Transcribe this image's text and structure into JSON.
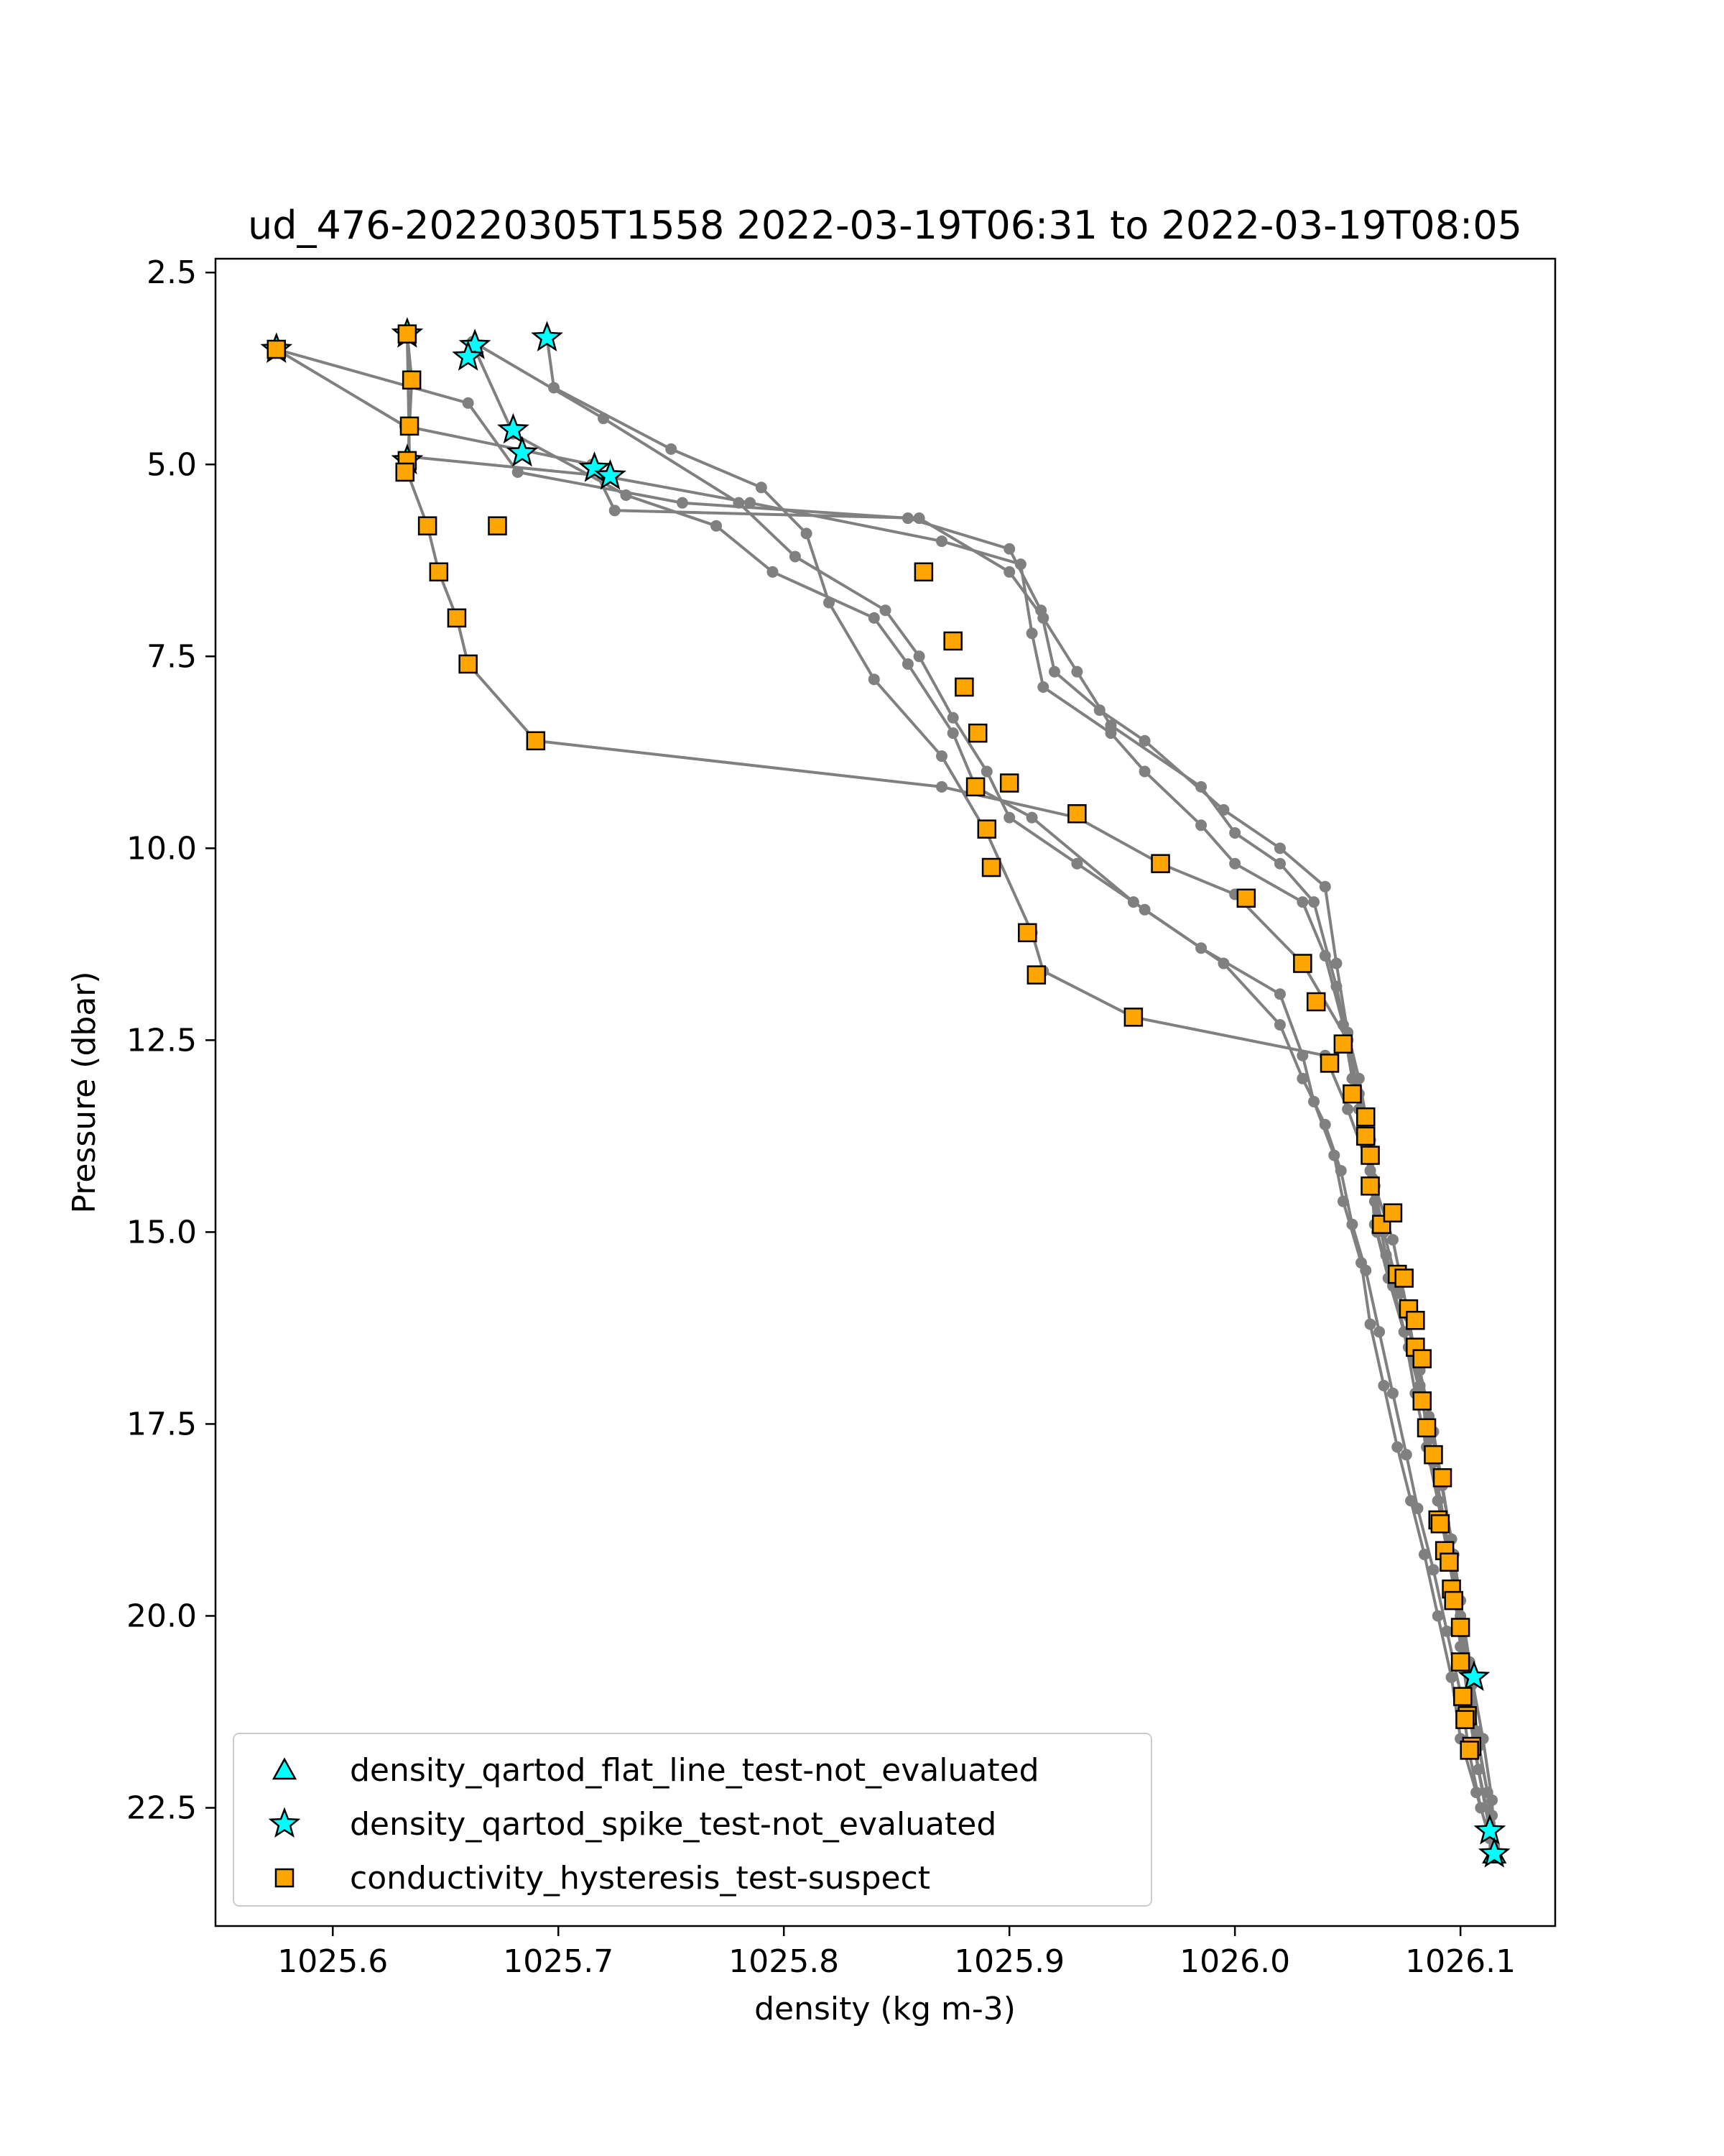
{
  "chart_data": {
    "type": "line",
    "title": "ud_476-20220305T1558 2022-03-19T06:31 to 2022-03-19T08:05",
    "xlabel": "density (kg m-3)",
    "ylabel": "Pressure (dbar)",
    "xlim": [
      1025.548,
      1026.142
    ],
    "ylim": [
      24.04,
      2.32
    ],
    "y_inverted": true,
    "x_ticks": [
      1025.6,
      1025.7,
      1025.8,
      1025.9,
      1026.0,
      1026.1
    ],
    "x_tick_labels": [
      "1025.6",
      "1025.7",
      "1025.8",
      "1025.9",
      "1026.0",
      "1026.1"
    ],
    "y_ticks": [
      2.5,
      5.0,
      7.5,
      10.0,
      12.5,
      15.0,
      17.5,
      20.0,
      22.5
    ],
    "y_tick_labels": [
      "2.5",
      "5.0",
      "7.5",
      "10.0",
      "12.5",
      "15.0",
      "17.5",
      "20.0",
      "22.5"
    ],
    "grid": false,
    "legend_position": "lower-left",
    "colors": {
      "profile_line": "#808080",
      "flat_line_marker": "#00ffff",
      "spike_marker": "#00ffff",
      "hysteresis_marker": "#ffa500",
      "marker_edge": "#000000"
    },
    "profiles": [
      [
        [
          1025.575,
          3.5
        ],
        [
          1025.66,
          4.2
        ],
        [
          1025.682,
          5.1
        ],
        [
          1025.755,
          5.5
        ],
        [
          1025.855,
          5.7
        ],
        [
          1025.9,
          6.1
        ],
        [
          1025.914,
          6.9
        ],
        [
          1025.92,
          7.7
        ],
        [
          1025.94,
          8.2
        ],
        [
          1025.96,
          8.6
        ],
        [
          1025.995,
          9.5
        ],
        [
          1026.02,
          10.0
        ],
        [
          1026.04,
          10.5
        ],
        [
          1026.045,
          11.5
        ],
        [
          1026.05,
          12.4
        ],
        [
          1026.055,
          13.0
        ],
        [
          1026.06,
          13.8
        ],
        [
          1026.062,
          14.6
        ],
        [
          1026.067,
          15.3
        ],
        [
          1026.075,
          16.0
        ],
        [
          1026.082,
          16.8
        ],
        [
          1026.088,
          17.6
        ],
        [
          1026.092,
          18.3
        ],
        [
          1026.097,
          19.2
        ],
        [
          1026.1,
          20.0
        ],
        [
          1026.105,
          20.8
        ],
        [
          1026.11,
          21.6
        ],
        [
          1026.114,
          22.4
        ],
        [
          1026.115,
          23.1
        ]
      ],
      [
        [
          1025.633,
          3.3
        ],
        [
          1025.635,
          3.9
        ],
        [
          1025.634,
          4.5
        ],
        [
          1025.633,
          5.1
        ],
        [
          1025.642,
          5.8
        ],
        [
          1025.647,
          6.4
        ],
        [
          1025.655,
          7.0
        ],
        [
          1025.66,
          7.6
        ],
        [
          1025.69,
          8.6
        ],
        [
          1025.87,
          9.2
        ],
        [
          1025.93,
          9.6
        ],
        [
          1025.967,
          10.2
        ],
        [
          1026.0,
          10.6
        ],
        [
          1026.03,
          11.5
        ],
        [
          1026.05,
          12.5
        ],
        [
          1026.055,
          13.2
        ],
        [
          1026.06,
          13.8
        ],
        [
          1026.062,
          14.4
        ],
        [
          1026.07,
          15.1
        ],
        [
          1026.077,
          16.1
        ],
        [
          1026.082,
          17.0
        ],
        [
          1026.086,
          17.7
        ],
        [
          1026.09,
          18.5
        ],
        [
          1026.096,
          19.3
        ],
        [
          1026.1,
          20.1
        ],
        [
          1026.103,
          21.0
        ],
        [
          1026.106,
          21.7
        ],
        [
          1026.113,
          22.8
        ],
        [
          1026.115,
          23.1
        ]
      ],
      [
        [
          1025.575,
          3.5
        ],
        [
          1025.632,
          4.5
        ],
        [
          1025.715,
          5.0
        ],
        [
          1025.725,
          5.6
        ],
        [
          1025.86,
          5.7
        ],
        [
          1025.9,
          6.4
        ],
        [
          1025.915,
          7.0
        ],
        [
          1025.93,
          7.7
        ],
        [
          1025.945,
          8.4
        ],
        [
          1025.985,
          9.2
        ],
        [
          1026.0,
          9.8
        ],
        [
          1026.02,
          10.2
        ],
        [
          1026.035,
          10.7
        ],
        [
          1026.045,
          11.8
        ],
        [
          1026.05,
          12.5
        ],
        [
          1026.055,
          13.4
        ],
        [
          1026.06,
          14.2
        ],
        [
          1026.063,
          15.0
        ],
        [
          1026.07,
          15.7
        ],
        [
          1026.077,
          16.5
        ],
        [
          1026.083,
          17.2
        ],
        [
          1026.088,
          18.0
        ],
        [
          1026.093,
          18.8
        ],
        [
          1026.097,
          19.6
        ],
        [
          1026.1,
          20.4
        ],
        [
          1026.104,
          21.2
        ],
        [
          1026.108,
          22.0
        ],
        [
          1026.113,
          22.7
        ],
        [
          1026.115,
          23.0
        ]
      ],
      [
        [
          1025.633,
          3.3
        ],
        [
          1025.634,
          4.9
        ],
        [
          1025.72,
          5.15
        ],
        [
          1025.785,
          5.5
        ],
        [
          1025.87,
          6.0
        ],
        [
          1025.905,
          6.3
        ],
        [
          1025.91,
          7.2
        ],
        [
          1025.915,
          7.9
        ],
        [
          1025.945,
          8.5
        ],
        [
          1025.96,
          9.0
        ],
        [
          1025.985,
          9.7
        ],
        [
          1026.0,
          10.2
        ],
        [
          1026.03,
          10.7
        ],
        [
          1026.04,
          11.4
        ],
        [
          1026.048,
          12.3
        ],
        [
          1026.052,
          13.0
        ],
        [
          1026.057,
          13.6
        ],
        [
          1026.061,
          14.3
        ],
        [
          1026.066,
          15.0
        ],
        [
          1026.073,
          15.8
        ],
        [
          1026.08,
          16.6
        ],
        [
          1026.086,
          17.4
        ],
        [
          1026.091,
          18.2
        ],
        [
          1026.096,
          19.0
        ],
        [
          1026.1,
          19.8
        ],
        [
          1026.104,
          20.6
        ],
        [
          1026.107,
          21.5
        ],
        [
          1026.112,
          22.3
        ],
        [
          1026.114,
          22.9
        ]
      ],
      [
        [
          1025.663,
          3.5
        ],
        [
          1025.68,
          4.6
        ],
        [
          1025.73,
          5.4
        ],
        [
          1025.77,
          5.8
        ],
        [
          1025.795,
          6.4
        ],
        [
          1025.84,
          7.0
        ],
        [
          1025.855,
          7.6
        ],
        [
          1025.875,
          8.5
        ],
        [
          1025.885,
          9.2
        ],
        [
          1025.91,
          9.6
        ],
        [
          1025.955,
          10.7
        ],
        [
          1025.985,
          11.3
        ],
        [
          1026.02,
          11.9
        ],
        [
          1026.03,
          12.7
        ],
        [
          1026.035,
          13.3
        ],
        [
          1026.044,
          14.0
        ],
        [
          1026.048,
          14.6
        ],
        [
          1026.056,
          15.4
        ],
        [
          1026.06,
          16.2
        ],
        [
          1026.066,
          17.0
        ],
        [
          1026.072,
          17.8
        ],
        [
          1026.078,
          18.5
        ],
        [
          1026.084,
          19.2
        ],
        [
          1026.09,
          20.0
        ],
        [
          1026.096,
          20.8
        ],
        [
          1026.1,
          21.6
        ],
        [
          1026.107,
          22.3
        ],
        [
          1026.113,
          22.9
        ]
      ],
      [
        [
          1025.662,
          3.4
        ],
        [
          1025.72,
          4.4
        ],
        [
          1025.78,
          5.5
        ],
        [
          1025.805,
          6.2
        ],
        [
          1025.845,
          6.9
        ],
        [
          1025.86,
          7.5
        ],
        [
          1025.875,
          8.3
        ],
        [
          1025.89,
          9.0
        ],
        [
          1025.9,
          9.6
        ],
        [
          1025.93,
          10.2
        ],
        [
          1025.96,
          10.8
        ],
        [
          1025.995,
          11.5
        ],
        [
          1026.02,
          12.3
        ],
        [
          1026.03,
          13.0
        ],
        [
          1026.04,
          13.6
        ],
        [
          1026.047,
          14.2
        ],
        [
          1026.052,
          14.9
        ],
        [
          1026.058,
          15.5
        ],
        [
          1026.064,
          16.3
        ],
        [
          1026.07,
          17.1
        ],
        [
          1026.076,
          17.9
        ],
        [
          1026.081,
          18.6
        ],
        [
          1026.088,
          19.4
        ],
        [
          1026.094,
          20.2
        ],
        [
          1026.1,
          21.0
        ],
        [
          1026.104,
          21.8
        ],
        [
          1026.109,
          22.5
        ]
      ],
      [
        [
          1025.695,
          3.35
        ],
        [
          1025.698,
          4.0
        ],
        [
          1025.75,
          4.8
        ],
        [
          1025.79,
          5.3
        ],
        [
          1025.81,
          5.9
        ],
        [
          1025.82,
          6.8
        ],
        [
          1025.84,
          7.8
        ],
        [
          1025.87,
          8.8
        ],
        [
          1025.89,
          9.8
        ],
        [
          1025.91,
          11.1
        ],
        [
          1025.915,
          11.6
        ],
        [
          1025.955,
          12.2
        ],
        [
          1026.04,
          12.7
        ],
        [
          1026.05,
          13.4
        ],
        [
          1026.06,
          14.2
        ],
        [
          1026.062,
          14.9
        ],
        [
          1026.068,
          15.6
        ],
        [
          1026.075,
          16.3
        ],
        [
          1026.08,
          17.1
        ],
        [
          1026.085,
          17.8
        ],
        [
          1026.09,
          18.5
        ],
        [
          1026.095,
          19.3
        ],
        [
          1026.1,
          20.1
        ],
        [
          1026.105,
          20.9
        ],
        [
          1026.108,
          21.7
        ],
        [
          1026.114,
          22.6
        ]
      ]
    ],
    "series": [
      {
        "name": "density_qartod_flat_line_test-not_evaluated",
        "marker": "triangle",
        "points": [
          [
            1026.115,
            23.1
          ]
        ]
      },
      {
        "name": "density_qartod_spike_test-not_evaluated",
        "marker": "star",
        "points": [
          [
            1025.575,
            3.5
          ],
          [
            1025.633,
            3.3
          ],
          [
            1025.663,
            3.45
          ],
          [
            1025.66,
            3.6
          ],
          [
            1025.695,
            3.35
          ],
          [
            1025.68,
            4.55
          ],
          [
            1025.684,
            4.85
          ],
          [
            1025.716,
            5.05
          ],
          [
            1025.723,
            5.15
          ],
          [
            1025.633,
            4.95
          ],
          [
            1026.106,
            20.8
          ],
          [
            1026.113,
            22.8
          ],
          [
            1026.115,
            23.1
          ]
        ]
      },
      {
        "name": "conductivity_hysteresis_test-suspect",
        "marker": "square",
        "points": [
          [
            1025.575,
            3.5
          ],
          [
            1025.633,
            3.3
          ],
          [
            1025.635,
            3.9
          ],
          [
            1025.634,
            4.5
          ],
          [
            1025.633,
            4.95
          ],
          [
            1025.632,
            5.1
          ],
          [
            1025.642,
            5.8
          ],
          [
            1025.647,
            6.4
          ],
          [
            1025.655,
            7.0
          ],
          [
            1025.66,
            7.6
          ],
          [
            1025.69,
            8.6
          ],
          [
            1025.673,
            5.8
          ],
          [
            1025.862,
            6.4
          ],
          [
            1025.875,
            7.3
          ],
          [
            1025.88,
            7.9
          ],
          [
            1025.886,
            8.5
          ],
          [
            1025.885,
            9.2
          ],
          [
            1025.9,
            9.15
          ],
          [
            1025.89,
            9.75
          ],
          [
            1025.892,
            10.25
          ],
          [
            1025.908,
            11.1
          ],
          [
            1025.912,
            11.65
          ],
          [
            1025.955,
            12.2
          ],
          [
            1025.93,
            9.55
          ],
          [
            1025.967,
            10.2
          ],
          [
            1026.005,
            10.65
          ],
          [
            1026.03,
            11.5
          ],
          [
            1026.036,
            12.0
          ],
          [
            1026.048,
            12.55
          ],
          [
            1026.042,
            12.8
          ],
          [
            1026.052,
            13.2
          ],
          [
            1026.058,
            13.5
          ],
          [
            1026.058,
            13.75
          ],
          [
            1026.06,
            14.0
          ],
          [
            1026.06,
            14.4
          ],
          [
            1026.065,
            14.9
          ],
          [
            1026.07,
            14.75
          ],
          [
            1026.072,
            15.55
          ],
          [
            1026.075,
            15.6
          ],
          [
            1026.077,
            16.0
          ],
          [
            1026.08,
            16.15
          ],
          [
            1026.08,
            16.5
          ],
          [
            1026.083,
            16.65
          ],
          [
            1026.083,
            17.2
          ],
          [
            1026.085,
            17.55
          ],
          [
            1026.088,
            17.9
          ],
          [
            1026.092,
            18.2
          ],
          [
            1026.09,
            18.75
          ],
          [
            1026.091,
            18.8
          ],
          [
            1026.093,
            19.15
          ],
          [
            1026.095,
            19.3
          ],
          [
            1026.096,
            19.65
          ],
          [
            1026.097,
            19.8
          ],
          [
            1026.1,
            20.15
          ],
          [
            1026.1,
            20.6
          ],
          [
            1026.101,
            21.05
          ],
          [
            1026.103,
            21.3
          ],
          [
            1026.102,
            21.35
          ],
          [
            1026.105,
            21.7
          ],
          [
            1026.104,
            21.75
          ]
        ]
      }
    ]
  }
}
